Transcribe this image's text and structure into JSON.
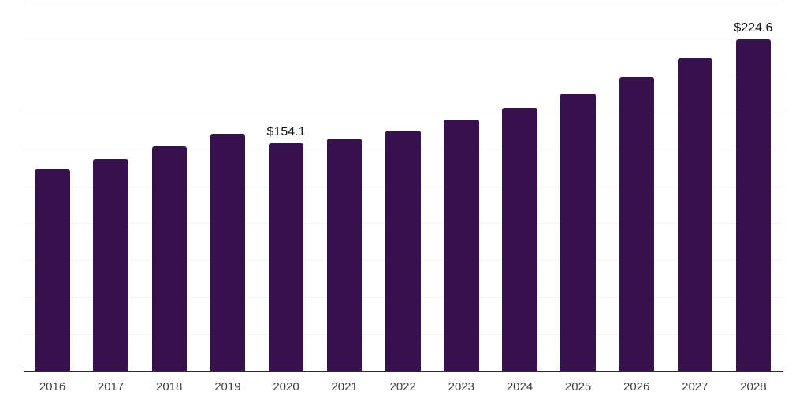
{
  "chart_data": {
    "type": "bar",
    "title": "",
    "xlabel": "",
    "ylabel": "",
    "categories": [
      "2016",
      "2017",
      "2018",
      "2019",
      "2020",
      "2021",
      "2022",
      "2023",
      "2024",
      "2025",
      "2026",
      "2027",
      "2028"
    ],
    "values": [
      136.3,
      143.4,
      152.2,
      160.3,
      154.1,
      157.3,
      162.8,
      169.9,
      177.9,
      187.8,
      198.7,
      211.5,
      224.6
    ],
    "data_labels": [
      "",
      "",
      "",
      "",
      "$154.1",
      "",
      "",
      "",
      "",
      "",
      "",
      "",
      "$224.6"
    ],
    "ylim": [
      0,
      250
    ],
    "gridlines": true,
    "gridline_interval": 25,
    "legend": "none",
    "colors": {
      "bar": "#37114E",
      "gridline": "#F3F3F3",
      "gridline_top": "#E7E7E7",
      "axis": "#2B2B2B",
      "tick_label": "#3D3D3D",
      "data_label": "#111111",
      "background": "#FFFFFF"
    }
  }
}
